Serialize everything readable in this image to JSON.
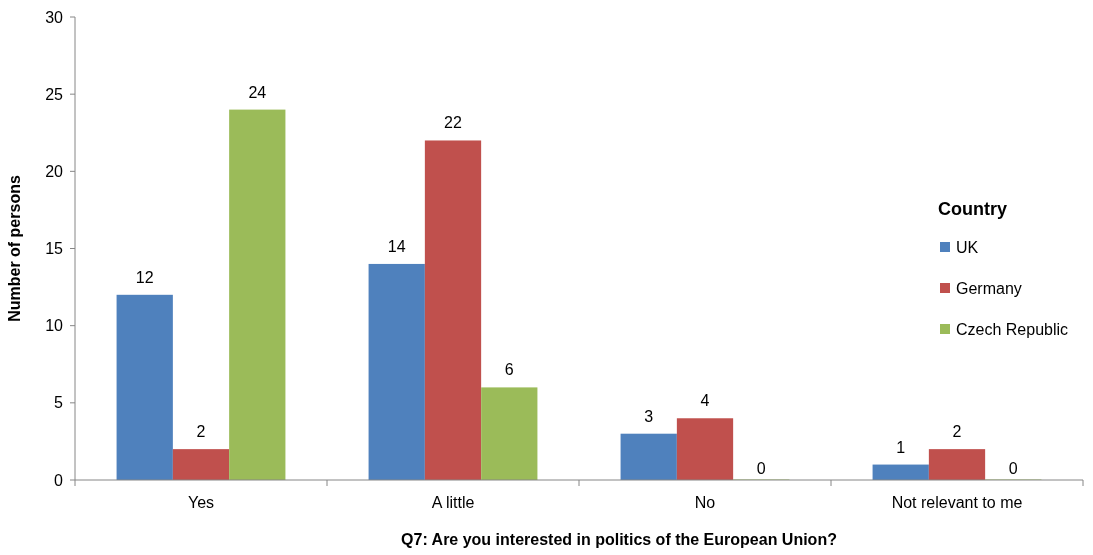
{
  "chart_data": {
    "type": "bar",
    "xlabel": "Q7: Are you interested in politics of the European Union?",
    "ylabel": "Number of persons",
    "legend_title": "Country",
    "categories": [
      "Yes",
      "A little",
      "No",
      "Not relevant to me"
    ],
    "series": [
      {
        "name": "UK",
        "color": "#4f81bd",
        "values": [
          12,
          14,
          3,
          1
        ]
      },
      {
        "name": "Germany",
        "color": "#c0504d",
        "values": [
          2,
          22,
          4,
          2
        ]
      },
      {
        "name": "Czech Republic",
        "color": "#9bbb59",
        "values": [
          24,
          6,
          0,
          0
        ]
      }
    ],
    "ylim": [
      0,
      30
    ],
    "yticks": [
      0,
      5,
      10,
      15,
      20,
      25,
      30
    ],
    "data_labels": true,
    "legend": "right",
    "grid": false
  }
}
